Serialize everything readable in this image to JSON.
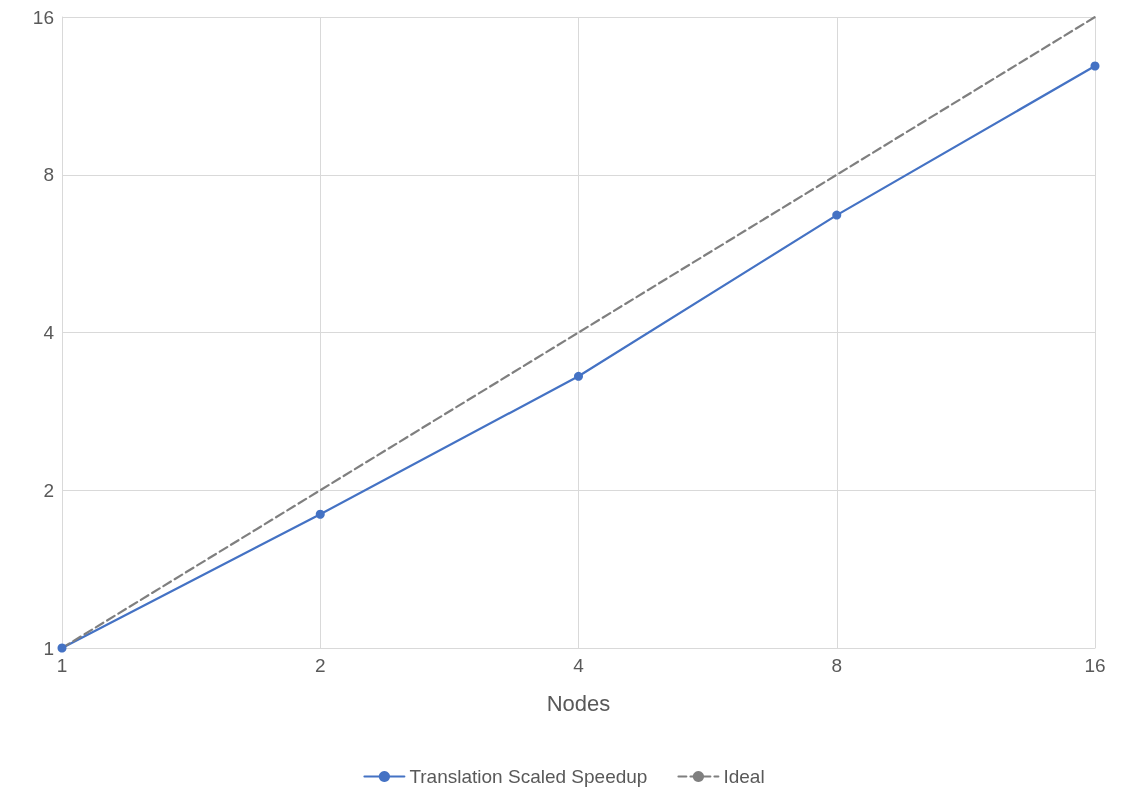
{
  "chart_data": {
    "type": "line",
    "xlabel": "Nodes",
    "x": [
      1,
      2,
      4,
      8,
      16
    ],
    "log": "xy",
    "xlim": [
      1,
      16
    ],
    "ylim": [
      1,
      16
    ],
    "xticks": [
      1,
      2,
      4,
      8,
      16
    ],
    "yticks": [
      1,
      2,
      4,
      8,
      16
    ],
    "grid": true,
    "legend": "bottom",
    "series": [
      {
        "name": "Translation Scaled Speedup",
        "color": "#4472c4",
        "values": [
          1,
          1.8,
          3.3,
          6.7,
          12.9
        ],
        "marker": "circle",
        "line_style": "solid"
      },
      {
        "name": "Ideal",
        "color": "#7f7f7f",
        "values": [
          1,
          2,
          4,
          8,
          16
        ],
        "marker": "none",
        "line_style": "dashed"
      }
    ]
  }
}
